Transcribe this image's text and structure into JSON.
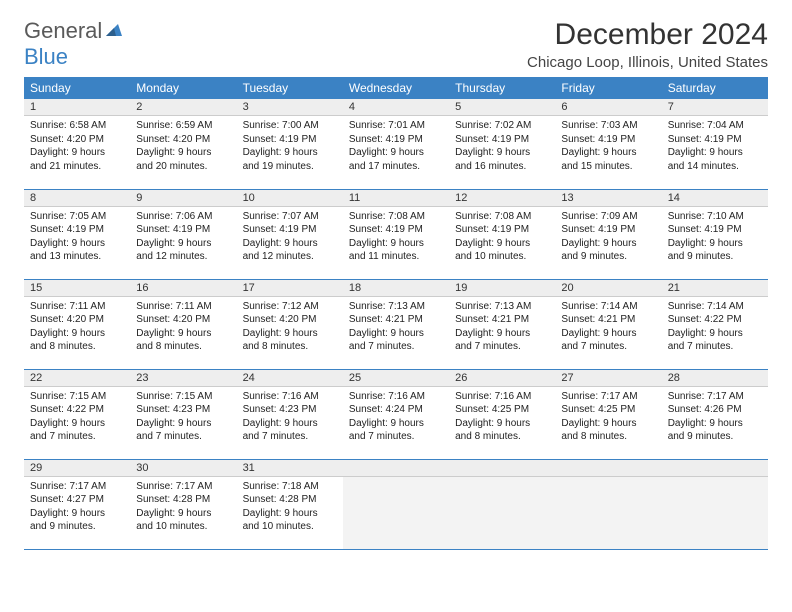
{
  "brand": {
    "part1": "General",
    "part2": "Blue"
  },
  "title": "December 2024",
  "location": "Chicago Loop, Illinois, United States",
  "colors": {
    "header_bg": "#3b82c4",
    "header_text": "#ffffff",
    "daynum_bg": "#eeeeee",
    "border": "#3b82c4",
    "empty_bg": "#f3f3f3",
    "text": "#222222"
  },
  "weekdays": [
    "Sunday",
    "Monday",
    "Tuesday",
    "Wednesday",
    "Thursday",
    "Friday",
    "Saturday"
  ],
  "weeks": [
    [
      {
        "n": "1",
        "sr": "6:58 AM",
        "ss": "4:20 PM",
        "dl": "9 hours and 21 minutes."
      },
      {
        "n": "2",
        "sr": "6:59 AM",
        "ss": "4:20 PM",
        "dl": "9 hours and 20 minutes."
      },
      {
        "n": "3",
        "sr": "7:00 AM",
        "ss": "4:19 PM",
        "dl": "9 hours and 19 minutes."
      },
      {
        "n": "4",
        "sr": "7:01 AM",
        "ss": "4:19 PM",
        "dl": "9 hours and 17 minutes."
      },
      {
        "n": "5",
        "sr": "7:02 AM",
        "ss": "4:19 PM",
        "dl": "9 hours and 16 minutes."
      },
      {
        "n": "6",
        "sr": "7:03 AM",
        "ss": "4:19 PM",
        "dl": "9 hours and 15 minutes."
      },
      {
        "n": "7",
        "sr": "7:04 AM",
        "ss": "4:19 PM",
        "dl": "9 hours and 14 minutes."
      }
    ],
    [
      {
        "n": "8",
        "sr": "7:05 AM",
        "ss": "4:19 PM",
        "dl": "9 hours and 13 minutes."
      },
      {
        "n": "9",
        "sr": "7:06 AM",
        "ss": "4:19 PM",
        "dl": "9 hours and 12 minutes."
      },
      {
        "n": "10",
        "sr": "7:07 AM",
        "ss": "4:19 PM",
        "dl": "9 hours and 12 minutes."
      },
      {
        "n": "11",
        "sr": "7:08 AM",
        "ss": "4:19 PM",
        "dl": "9 hours and 11 minutes."
      },
      {
        "n": "12",
        "sr": "7:08 AM",
        "ss": "4:19 PM",
        "dl": "9 hours and 10 minutes."
      },
      {
        "n": "13",
        "sr": "7:09 AM",
        "ss": "4:19 PM",
        "dl": "9 hours and 9 minutes."
      },
      {
        "n": "14",
        "sr": "7:10 AM",
        "ss": "4:19 PM",
        "dl": "9 hours and 9 minutes."
      }
    ],
    [
      {
        "n": "15",
        "sr": "7:11 AM",
        "ss": "4:20 PM",
        "dl": "9 hours and 8 minutes."
      },
      {
        "n": "16",
        "sr": "7:11 AM",
        "ss": "4:20 PM",
        "dl": "9 hours and 8 minutes."
      },
      {
        "n": "17",
        "sr": "7:12 AM",
        "ss": "4:20 PM",
        "dl": "9 hours and 8 minutes."
      },
      {
        "n": "18",
        "sr": "7:13 AM",
        "ss": "4:21 PM",
        "dl": "9 hours and 7 minutes."
      },
      {
        "n": "19",
        "sr": "7:13 AM",
        "ss": "4:21 PM",
        "dl": "9 hours and 7 minutes."
      },
      {
        "n": "20",
        "sr": "7:14 AM",
        "ss": "4:21 PM",
        "dl": "9 hours and 7 minutes."
      },
      {
        "n": "21",
        "sr": "7:14 AM",
        "ss": "4:22 PM",
        "dl": "9 hours and 7 minutes."
      }
    ],
    [
      {
        "n": "22",
        "sr": "7:15 AM",
        "ss": "4:22 PM",
        "dl": "9 hours and 7 minutes."
      },
      {
        "n": "23",
        "sr": "7:15 AM",
        "ss": "4:23 PM",
        "dl": "9 hours and 7 minutes."
      },
      {
        "n": "24",
        "sr": "7:16 AM",
        "ss": "4:23 PM",
        "dl": "9 hours and 7 minutes."
      },
      {
        "n": "25",
        "sr": "7:16 AM",
        "ss": "4:24 PM",
        "dl": "9 hours and 7 minutes."
      },
      {
        "n": "26",
        "sr": "7:16 AM",
        "ss": "4:25 PM",
        "dl": "9 hours and 8 minutes."
      },
      {
        "n": "27",
        "sr": "7:17 AM",
        "ss": "4:25 PM",
        "dl": "9 hours and 8 minutes."
      },
      {
        "n": "28",
        "sr": "7:17 AM",
        "ss": "4:26 PM",
        "dl": "9 hours and 9 minutes."
      }
    ],
    [
      {
        "n": "29",
        "sr": "7:17 AM",
        "ss": "4:27 PM",
        "dl": "9 hours and 9 minutes."
      },
      {
        "n": "30",
        "sr": "7:17 AM",
        "ss": "4:28 PM",
        "dl": "9 hours and 10 minutes."
      },
      {
        "n": "31",
        "sr": "7:18 AM",
        "ss": "4:28 PM",
        "dl": "9 hours and 10 minutes."
      },
      null,
      null,
      null,
      null
    ]
  ],
  "labels": {
    "sunrise": "Sunrise:",
    "sunset": "Sunset:",
    "daylight": "Daylight:"
  }
}
